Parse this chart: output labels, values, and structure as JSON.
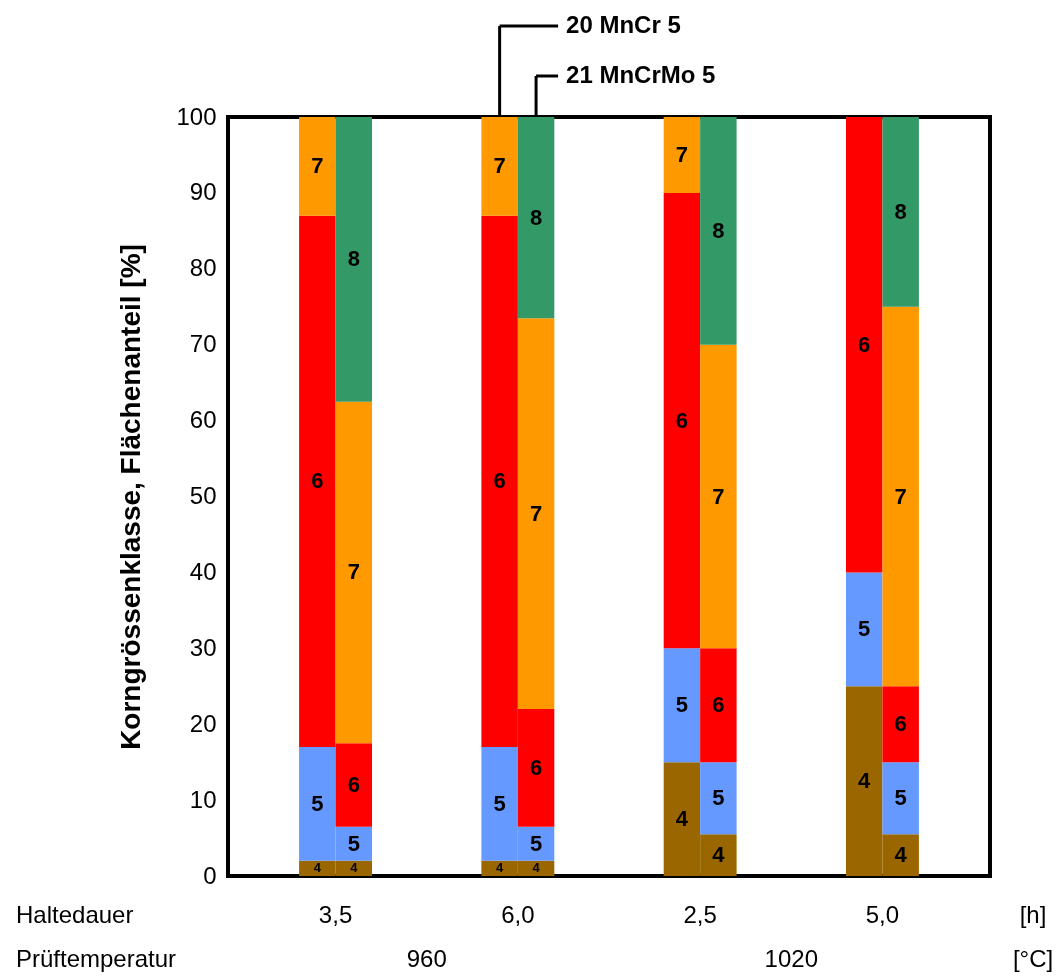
{
  "chart_data": {
    "type": "bar",
    "stacked": true,
    "ylabel": "Korngrössenklasse, Flächenanteil [%]",
    "categories": [
      null,
      null,
      null,
      null,
      null,
      null,
      null,
      null
    ],
    "ylim": [
      0,
      100
    ],
    "yticks": [
      0,
      10,
      20,
      30,
      40,
      50,
      60,
      70,
      80,
      90,
      100
    ],
    "grid": false,
    "legend": false,
    "series": [
      {
        "name": "4",
        "color": "#996600",
        "values": [
          2,
          2,
          2,
          2,
          15,
          5.5,
          25,
          5.5
        ]
      },
      {
        "name": "5",
        "color": "#6699ff",
        "values": [
          15,
          4.5,
          15,
          4.5,
          15,
          9.5,
          15,
          9.5
        ]
      },
      {
        "name": "6",
        "color": "#ff0000",
        "values": [
          70,
          11,
          70,
          15.5,
          60,
          15,
          60,
          10
        ]
      },
      {
        "name": "7",
        "color": "#ff9900",
        "values": [
          13,
          45,
          13,
          51.5,
          10,
          40,
          null,
          50
        ]
      },
      {
        "name": "8",
        "color": "#339966",
        "values": [
          null,
          37.5,
          null,
          26.5,
          null,
          30,
          null,
          25
        ]
      }
    ],
    "annotations": [
      "20 MnCr 5",
      "21 MnCrMo 5",
      "Haltedauer",
      "3,5",
      "6,0",
      "2,5",
      "5,0",
      "[h]",
      "Prüftemperatur",
      "960",
      "1020",
      "[°C]"
    ]
  }
}
